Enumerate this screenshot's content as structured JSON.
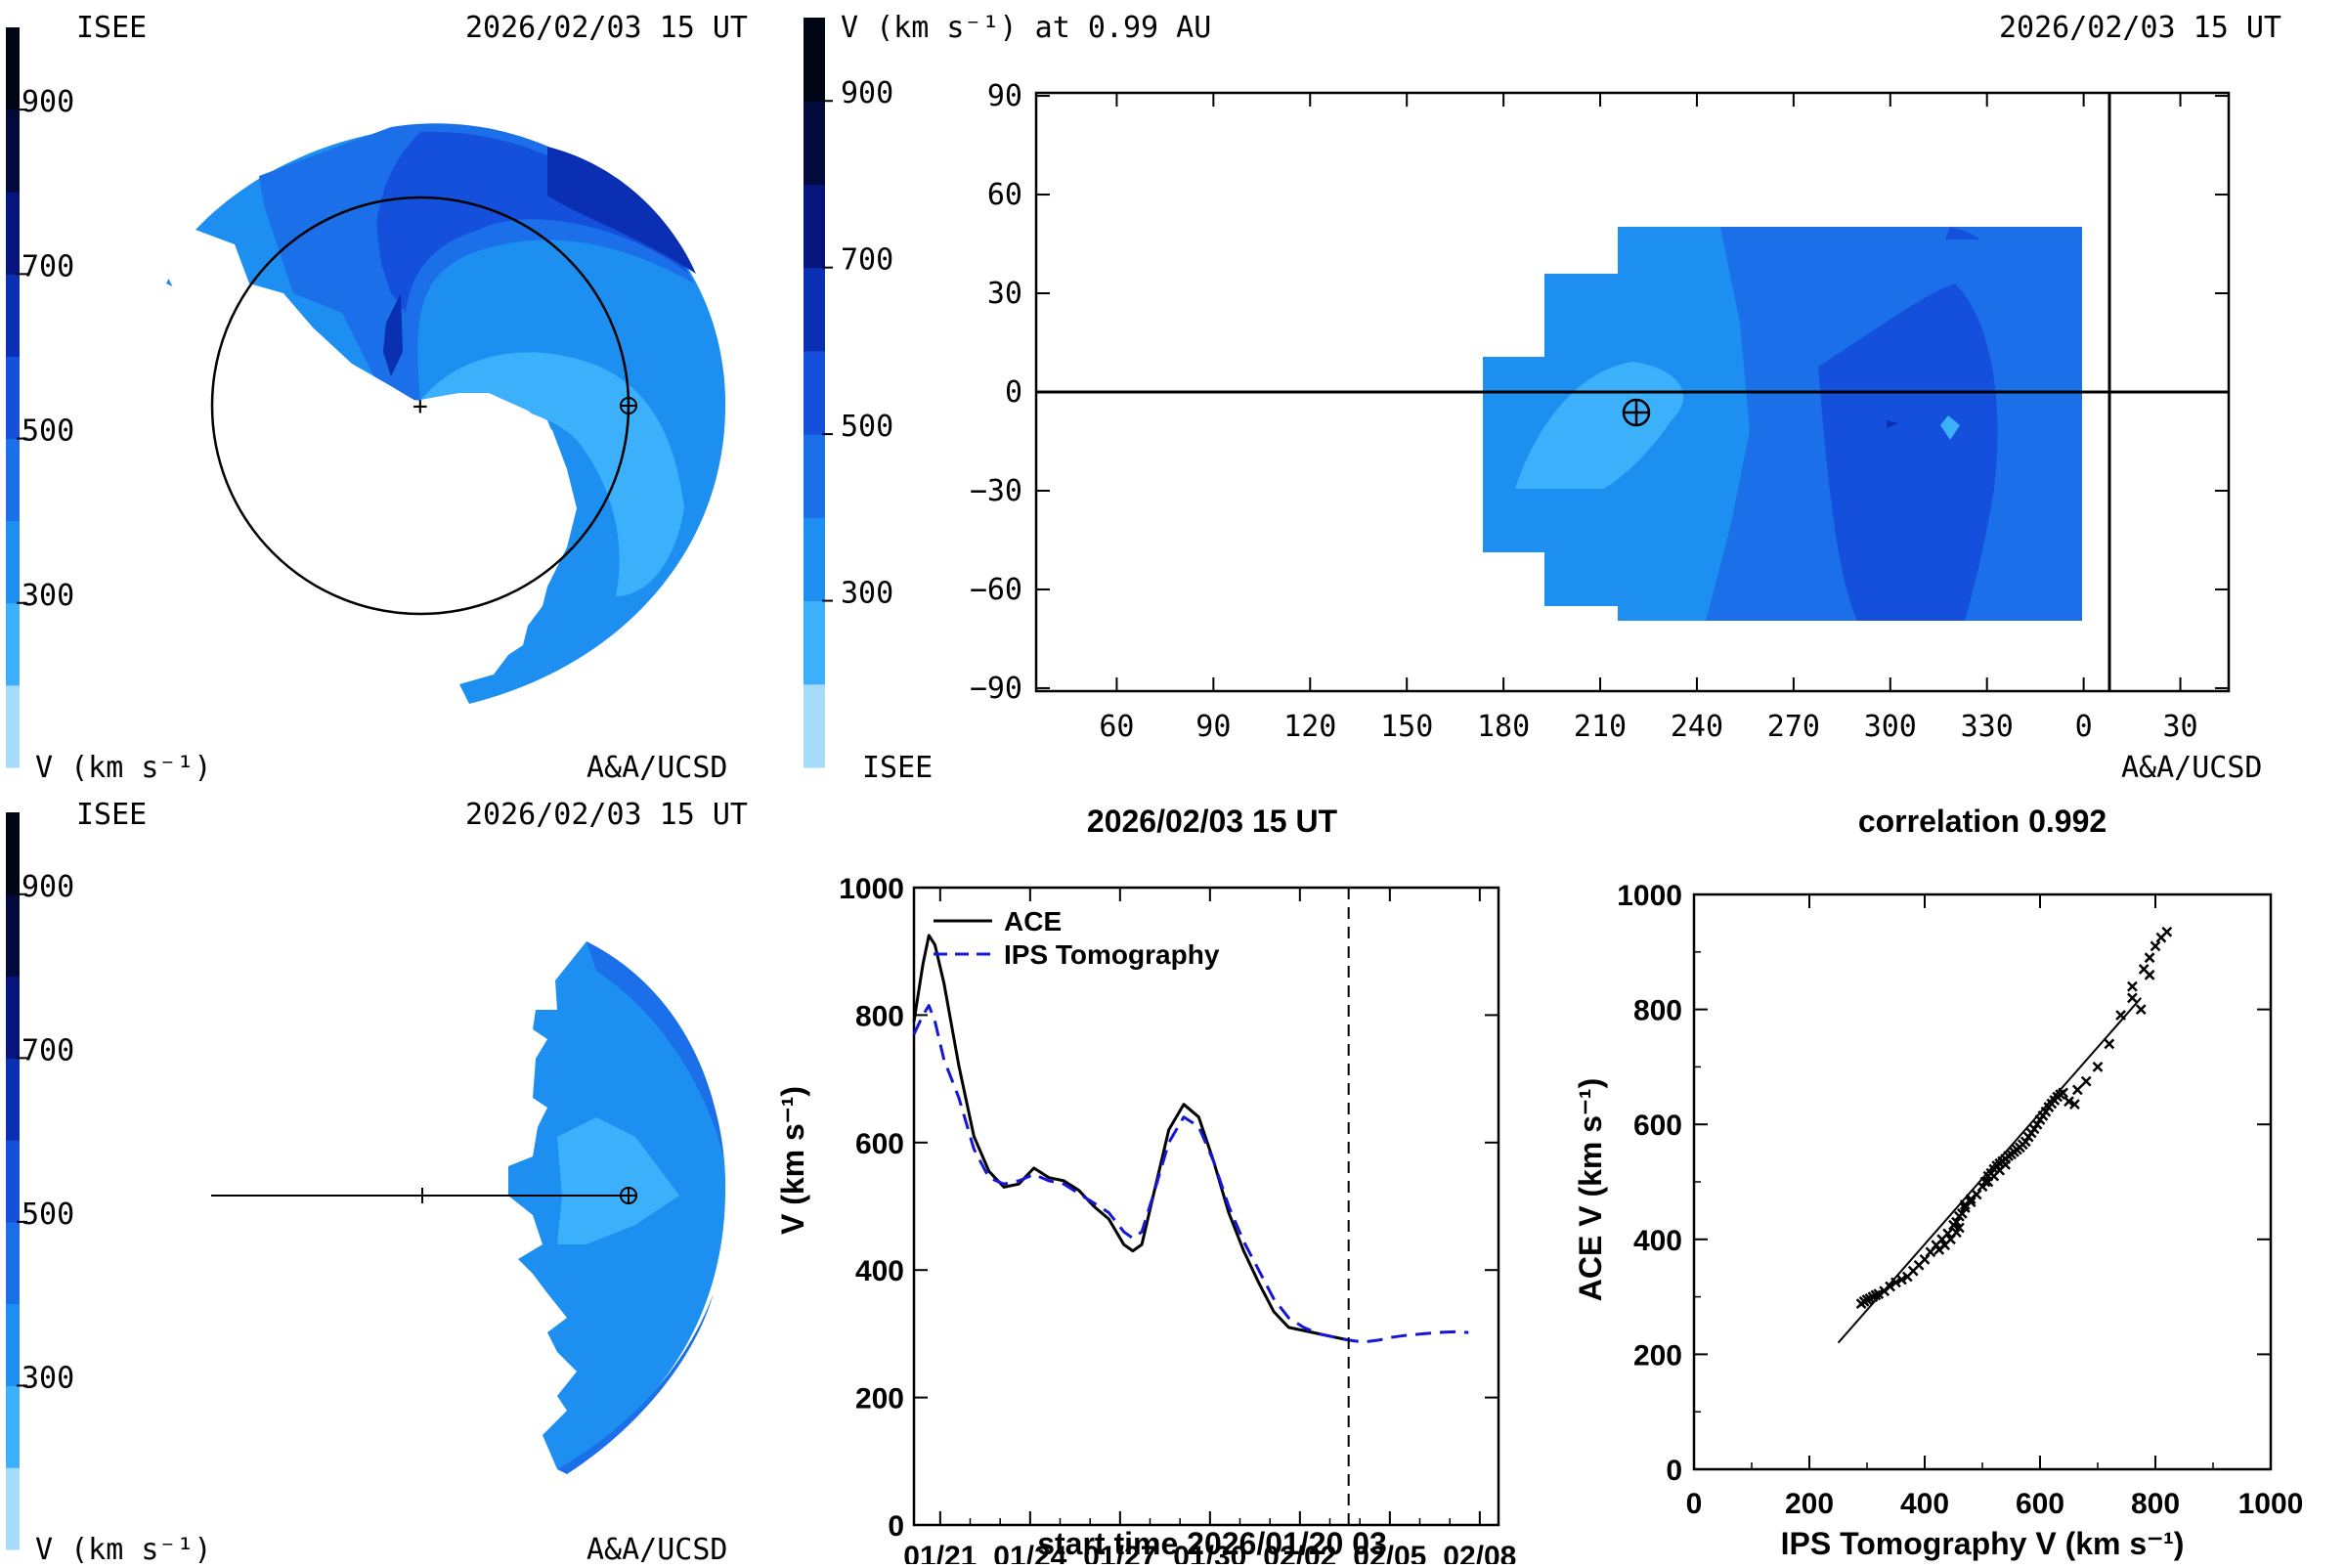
{
  "colorbar": {
    "colors": [
      "#a6dcf9",
      "#3db0fb",
      "#1c8ff0",
      "#1b6fe8",
      "#1450dc",
      "#0b2fb2",
      "#06157e",
      "#020a3c",
      "#010615"
    ],
    "ticks": [
      "300",
      "500",
      "700",
      "900"
    ]
  },
  "panel_ecliptic": {
    "org": "ISEE",
    "date": "2026/02/03 15 UT",
    "unit": "V (km s⁻¹)",
    "credit": "A&A/UCSD"
  },
  "panel_map": {
    "title": "V (km s⁻¹) at 0.99 AU",
    "date": "2026/02/03 15 UT",
    "org": "ISEE",
    "credit": "A&A/UCSD",
    "x_ticks": [
      "60",
      "90",
      "120",
      "150",
      "180",
      "210",
      "240",
      "270",
      "300",
      "330",
      "0",
      "30"
    ],
    "y_ticks": [
      "90",
      "60",
      "30",
      "0",
      "−30",
      "−60",
      "−90"
    ],
    "earth_symbol": "⊕"
  },
  "panel_meridional": {
    "org": "ISEE",
    "date": "2026/02/03 15 UT",
    "unit": "V (km s⁻¹)",
    "credit": "A&A/UCSD"
  },
  "chart_data": [
    {
      "type": "line",
      "title": "2026/02/03 15 UT",
      "xlabel": "start time 2026/01/20 03",
      "ylabel": "V (km s⁻¹)",
      "x_tick_labels": [
        "01/21",
        "01/24",
        "01/27",
        "01/30",
        "02/02",
        "02/05",
        "02/08"
      ],
      "x_tick_days": [
        0.875,
        3.875,
        6.875,
        9.875,
        12.875,
        15.875,
        18.875
      ],
      "xlim_days": [
        0,
        19.5
      ],
      "ylim": [
        0,
        1000
      ],
      "y_ticks": [
        "0",
        "200",
        "400",
        "600",
        "800",
        "1000"
      ],
      "current_time_day": 14.5,
      "legend": [
        "ACE",
        "IPS Tomography"
      ],
      "series": [
        {
          "name": "ACE",
          "x_days": [
            0,
            0.3,
            0.5,
            0.7,
            1.0,
            1.5,
            2.0,
            2.5,
            3.0,
            3.5,
            4.0,
            4.5,
            5.0,
            5.5,
            6.0,
            6.5,
            7.0,
            7.3,
            7.6,
            8.0,
            8.5,
            9.0,
            9.5,
            10.0,
            10.5,
            11.0,
            11.5,
            12.0,
            12.5,
            13.0,
            13.5,
            14.0,
            14.5
          ],
          "values": [
            790,
            880,
            925,
            910,
            850,
            720,
            610,
            555,
            530,
            535,
            560,
            545,
            540,
            525,
            500,
            480,
            440,
            430,
            440,
            520,
            620,
            660,
            640,
            570,
            490,
            430,
            380,
            335,
            310,
            305,
            300,
            295,
            290
          ]
        },
        {
          "name": "IPS Tomography",
          "x_days": [
            0,
            0.3,
            0.5,
            0.7,
            1.0,
            1.5,
            2.0,
            2.5,
            3.0,
            3.5,
            4.0,
            4.5,
            5.0,
            5.5,
            6.0,
            6.5,
            7.0,
            7.3,
            7.6,
            8.0,
            8.5,
            9.0,
            9.5,
            10.0,
            10.5,
            11.0,
            11.5,
            12.0,
            12.5,
            13.0,
            13.5,
            14.0,
            14.5,
            15.0,
            15.5,
            16.0,
            16.5,
            17.0,
            17.5,
            18.0,
            18.5
          ],
          "values": [
            770,
            800,
            815,
            790,
            730,
            670,
            590,
            545,
            535,
            540,
            550,
            540,
            535,
            520,
            505,
            490,
            460,
            450,
            460,
            520,
            600,
            640,
            625,
            570,
            500,
            445,
            400,
            355,
            325,
            310,
            300,
            295,
            290,
            287,
            290,
            295,
            298,
            300,
            302,
            303,
            302
          ]
        }
      ]
    },
    {
      "type": "scatter",
      "title": "correlation 0.992",
      "xlabel": "IPS Tomography V (km s⁻¹)",
      "ylabel": "ACE V (km s⁻¹)",
      "xlim": [
        0,
        1000
      ],
      "ylim": [
        0,
        1000
      ],
      "x_ticks": [
        "0",
        "200",
        "400",
        "600",
        "800",
        "1000"
      ],
      "y_ticks": [
        "0",
        "200",
        "400",
        "600",
        "800",
        "1000"
      ],
      "fit_line": [
        [
          250,
          220
        ],
        [
          775,
          820
        ]
      ],
      "points": [
        [
          290,
          288
        ],
        [
          295,
          292
        ],
        [
          300,
          295
        ],
        [
          305,
          297
        ],
        [
          310,
          300
        ],
        [
          315,
          303
        ],
        [
          320,
          305
        ],
        [
          330,
          310
        ],
        [
          340,
          318
        ],
        [
          350,
          325
        ],
        [
          360,
          330
        ],
        [
          370,
          335
        ],
        [
          380,
          345
        ],
        [
          390,
          355
        ],
        [
          400,
          365
        ],
        [
          410,
          378
        ],
        [
          420,
          390
        ],
        [
          430,
          400
        ],
        [
          440,
          410
        ],
        [
          450,
          425
        ],
        [
          455,
          430
        ],
        [
          460,
          440
        ],
        [
          465,
          445
        ],
        [
          470,
          455
        ],
        [
          480,
          465
        ],
        [
          490,
          478
        ],
        [
          500,
          492
        ],
        [
          505,
          500
        ],
        [
          510,
          510
        ],
        [
          515,
          515
        ],
        [
          520,
          522
        ],
        [
          525,
          528
        ],
        [
          530,
          532
        ],
        [
          535,
          536
        ],
        [
          540,
          540
        ],
        [
          545,
          545
        ],
        [
          550,
          548
        ],
        [
          555,
          552
        ],
        [
          560,
          556
        ],
        [
          565,
          560
        ],
        [
          570,
          565
        ],
        [
          575,
          570
        ],
        [
          580,
          578
        ],
        [
          585,
          585
        ],
        [
          590,
          592
        ],
        [
          595,
          600
        ],
        [
          600,
          608
        ],
        [
          605,
          615
        ],
        [
          610,
          622
        ],
        [
          615,
          630
        ],
        [
          620,
          636
        ],
        [
          625,
          642
        ],
        [
          630,
          648
        ],
        [
          635,
          652
        ],
        [
          640,
          655
        ],
        [
          650,
          640
        ],
        [
          660,
          635
        ],
        [
          540,
          530
        ],
        [
          530,
          520
        ],
        [
          520,
          510
        ],
        [
          510,
          500
        ],
        [
          480,
          470
        ],
        [
          470,
          460
        ],
        [
          460,
          420
        ],
        [
          455,
          412
        ],
        [
          445,
          400
        ],
        [
          435,
          390
        ],
        [
          425,
          382
        ],
        [
          665,
          660
        ],
        [
          680,
          675
        ],
        [
          700,
          700
        ],
        [
          720,
          740
        ],
        [
          740,
          790
        ],
        [
          760,
          840
        ],
        [
          780,
          870
        ],
        [
          790,
          890
        ],
        [
          800,
          910
        ],
        [
          810,
          925
        ],
        [
          820,
          935
        ],
        [
          775,
          800
        ],
        [
          760,
          820
        ],
        [
          790,
          860
        ]
      ]
    }
  ]
}
